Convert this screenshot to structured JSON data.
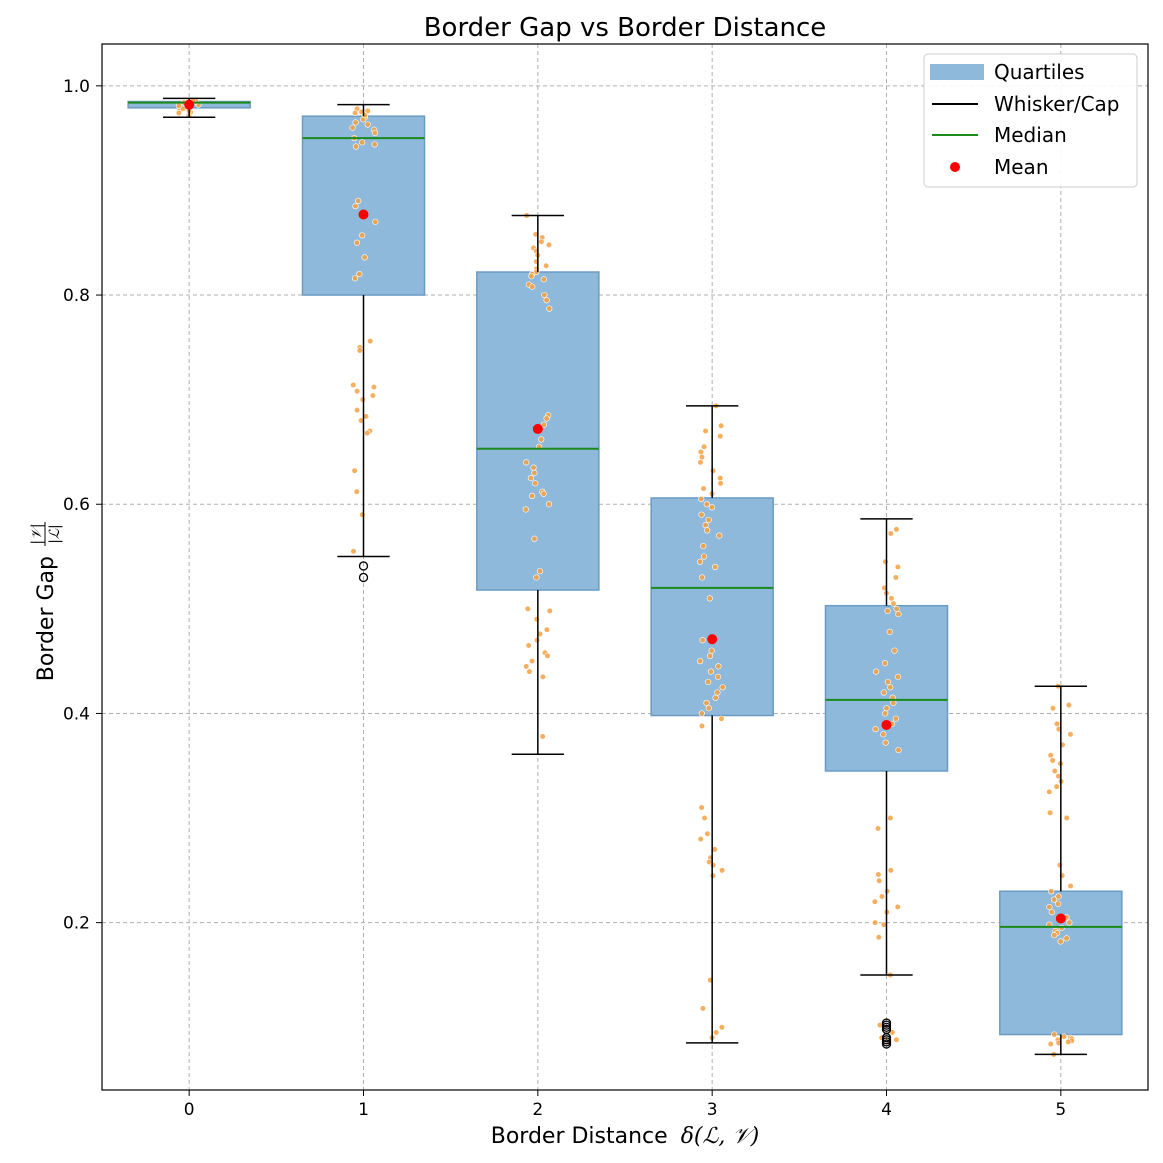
{
  "chart_data": {
    "type": "box",
    "title": "Border Gap vs Border Distance",
    "xlabel_prefix": "Border Distance",
    "xlabel_math": "δ(ℒ, 𝒱)",
    "ylabel_prefix": "Border Gap",
    "ylabel_numerator": "|𝒱|",
    "ylabel_denominator": "|ℒ|",
    "xlim": [
      -0.5,
      5.5
    ],
    "ylim": [
      0.04,
      1.04
    ],
    "x_ticks": [
      "0",
      "1",
      "2",
      "3",
      "4",
      "5"
    ],
    "y_ticks": [
      0.2,
      0.4,
      0.6,
      0.8,
      1.0
    ],
    "y_tick_labels": [
      "0.2",
      "0.4",
      "0.6",
      "0.8",
      "1.0"
    ],
    "grid": true,
    "legend_position": "top-right",
    "legend": [
      "Quartiles",
      "Whisker/Cap",
      "Median",
      "Mean"
    ],
    "colors": {
      "box_fill": "#8fb9da",
      "box_edge": "#6a9bc3",
      "whisker": "#000000",
      "median": "#1a8a1a",
      "mean": "#ff0000",
      "points": "#f5a142",
      "outlier_edge": "#000000"
    },
    "groups": [
      {
        "x": 0,
        "q1": 0.979,
        "median": 0.984,
        "q3": 0.985,
        "whisker_low": 0.97,
        "whisker_high": 0.988,
        "mean": 0.982,
        "outliers": [],
        "points": [
          0.972,
          0.975,
          0.977,
          0.978,
          0.979,
          0.98,
          0.981,
          0.982,
          0.983,
          0.984,
          0.984,
          0.985,
          0.986,
          0.974,
          0.976
        ]
      },
      {
        "x": 1,
        "q1": 0.8,
        "median": 0.95,
        "q3": 0.971,
        "whisker_low": 0.55,
        "whisker_high": 0.982,
        "mean": 0.877,
        "outliers": [
          0.541,
          0.53
        ],
        "points": [
          0.978,
          0.976,
          0.974,
          0.97,
          0.968,
          0.965,
          0.96,
          0.958,
          0.955,
          0.95,
          0.946,
          0.944,
          0.942,
          0.975,
          0.972,
          0.963,
          0.89,
          0.885,
          0.87,
          0.857,
          0.85,
          0.836,
          0.82,
          0.816,
          0.756,
          0.75,
          0.747,
          0.714,
          0.712,
          0.708,
          0.704,
          0.7,
          0.69,
          0.684,
          0.68,
          0.67,
          0.668,
          0.632,
          0.612,
          0.59,
          0.555
        ]
      },
      {
        "x": 2,
        "q1": 0.518,
        "median": 0.653,
        "q3": 0.822,
        "whisker_low": 0.361,
        "whisker_high": 0.876,
        "mean": 0.672,
        "outliers": [],
        "points": [
          0.876,
          0.858,
          0.855,
          0.851,
          0.848,
          0.845,
          0.842,
          0.838,
          0.832,
          0.828,
          0.825,
          0.822,
          0.82,
          0.818,
          0.815,
          0.81,
          0.808,
          0.8,
          0.795,
          0.787,
          0.685,
          0.682,
          0.676,
          0.662,
          0.655,
          0.64,
          0.635,
          0.63,
          0.625,
          0.62,
          0.612,
          0.61,
          0.608,
          0.6,
          0.595,
          0.567,
          0.536,
          0.53,
          0.5,
          0.498,
          0.49,
          0.48,
          0.476,
          0.47,
          0.465,
          0.458,
          0.455,
          0.45,
          0.445,
          0.44,
          0.435,
          0.378
        ]
      },
      {
        "x": 3,
        "q1": 0.398,
        "median": 0.52,
        "q3": 0.606,
        "whisker_low": 0.085,
        "whisker_high": 0.694,
        "mean": 0.471,
        "outliers": [],
        "points": [
          0.694,
          0.675,
          0.67,
          0.665,
          0.655,
          0.65,
          0.645,
          0.64,
          0.632,
          0.625,
          0.62,
          0.615,
          0.61,
          0.605,
          0.6,
          0.597,
          0.59,
          0.585,
          0.58,
          0.575,
          0.57,
          0.56,
          0.55,
          0.545,
          0.54,
          0.53,
          0.51,
          0.47,
          0.46,
          0.455,
          0.45,
          0.445,
          0.44,
          0.435,
          0.43,
          0.425,
          0.42,
          0.415,
          0.41,
          0.405,
          0.4,
          0.395,
          0.388,
          0.31,
          0.3,
          0.285,
          0.28,
          0.27,
          0.262,
          0.258,
          0.255,
          0.25,
          0.245,
          0.145,
          0.118,
          0.1,
          0.095,
          0.09
        ]
      },
      {
        "x": 4,
        "q1": 0.345,
        "median": 0.413,
        "q3": 0.503,
        "whisker_low": 0.15,
        "whisker_high": 0.586,
        "mean": 0.389,
        "outliers": [
          0.104,
          0.102,
          0.1,
          0.098,
          0.09,
          0.088,
          0.086,
          0.084
        ],
        "points": [
          0.576,
          0.572,
          0.545,
          0.54,
          0.53,
          0.52,
          0.515,
          0.51,
          0.505,
          0.5,
          0.498,
          0.495,
          0.478,
          0.46,
          0.448,
          0.44,
          0.435,
          0.43,
          0.425,
          0.42,
          0.415,
          0.41,
          0.405,
          0.4,
          0.395,
          0.39,
          0.385,
          0.38,
          0.372,
          0.365,
          0.3,
          0.29,
          0.25,
          0.246,
          0.24,
          0.23,
          0.225,
          0.22,
          0.215,
          0.21,
          0.2,
          0.198,
          0.186,
          0.15,
          0.102,
          0.095,
          0.09,
          0.088,
          0.086
        ]
      },
      {
        "x": 5,
        "q1": 0.093,
        "median": 0.196,
        "q3": 0.23,
        "whisker_low": 0.074,
        "whisker_high": 0.426,
        "mean": 0.204,
        "outliers": [],
        "points": [
          0.426,
          0.408,
          0.405,
          0.39,
          0.385,
          0.38,
          0.37,
          0.36,
          0.355,
          0.352,
          0.345,
          0.34,
          0.335,
          0.33,
          0.325,
          0.305,
          0.3,
          0.255,
          0.245,
          0.235,
          0.23,
          0.225,
          0.222,
          0.218,
          0.215,
          0.21,
          0.205,
          0.2,
          0.198,
          0.195,
          0.192,
          0.19,
          0.188,
          0.185,
          0.182,
          0.093,
          0.091,
          0.09,
          0.089,
          0.088,
          0.087,
          0.086,
          0.085,
          0.084,
          0.074
        ]
      }
    ]
  }
}
